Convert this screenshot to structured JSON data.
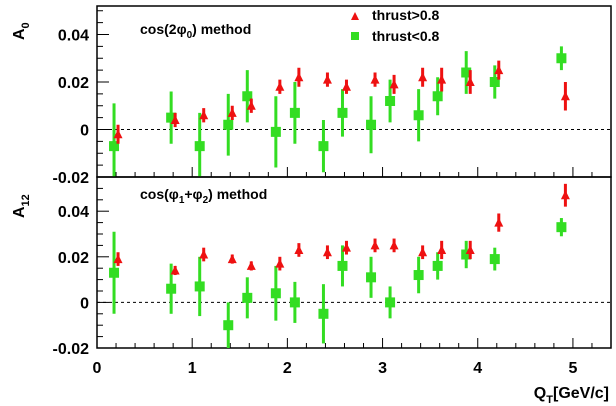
{
  "chart_data": [
    {
      "type": "scatter",
      "title": "cos(2φ0) method",
      "title_parts": {
        "main": "cos(2φ",
        "sub": "0",
        "tail": ") method"
      },
      "ylabel": "A0",
      "ylabel_parts": {
        "main": "A",
        "sub": "0"
      },
      "xlabel": "",
      "xlim": [
        0,
        5.4
      ],
      "ylim": [
        -0.02,
        0.052
      ],
      "yticks": [
        -0.02,
        0,
        0.02,
        0.04
      ],
      "ytick_labels": [
        "-0.02",
        "0",
        "0.02",
        "0.04"
      ],
      "reference_line": 0,
      "legend_position": "top-right",
      "series": [
        {
          "name": "thrust>0.8",
          "marker": "triangle",
          "color": "#ee1111",
          "x": [
            0.2,
            0.8,
            1.1,
            1.4,
            1.6,
            1.9,
            2.1,
            2.4,
            2.6,
            2.9,
            3.1,
            3.4,
            3.6,
            3.9,
            4.2,
            4.9
          ],
          "y": [
            -0.002,
            0.004,
            0.006,
            0.007,
            0.01,
            0.018,
            0.022,
            0.021,
            0.018,
            0.021,
            0.019,
            0.022,
            0.021,
            0.02,
            0.025,
            0.014
          ],
          "err": [
            0.004,
            0.003,
            0.003,
            0.003,
            0.003,
            0.003,
            0.004,
            0.003,
            0.003,
            0.003,
            0.004,
            0.004,
            0.005,
            0.005,
            0.004,
            0.006
          ]
        },
        {
          "name": "thrust<0.8",
          "marker": "square",
          "color": "#33dd22",
          "x": [
            0.2,
            0.8,
            1.1,
            1.4,
            1.6,
            1.9,
            2.1,
            2.4,
            2.6,
            2.9,
            3.1,
            3.4,
            3.6,
            3.9,
            4.2,
            4.9
          ],
          "y": [
            -0.007,
            0.005,
            -0.007,
            0.002,
            0.014,
            -0.001,
            0.007,
            -0.007,
            0.007,
            0.002,
            0.012,
            0.006,
            0.014,
            0.024,
            0.02,
            0.03
          ],
          "err": [
            0.018,
            0.011,
            0.014,
            0.013,
            0.011,
            0.015,
            0.013,
            0.011,
            0.01,
            0.012,
            0.009,
            0.011,
            0.008,
            0.009,
            0.007,
            0.005
          ]
        }
      ]
    },
    {
      "type": "scatter",
      "title": "cos(φ1+φ2) method",
      "title_parts": {
        "main": "cos(φ",
        "sub": "1",
        "mid": "+φ",
        "sub2": "2",
        "tail": ") method"
      },
      "ylabel": "A12",
      "ylabel_parts": {
        "main": "A",
        "sub": "12"
      },
      "xlabel": "QT[GeV/c]",
      "xlabel_parts": {
        "main": "Q",
        "sub": "T",
        "tail": "[GeV/c]"
      },
      "xlim": [
        0,
        5.4
      ],
      "xticks": [
        0,
        1,
        2,
        3,
        4,
        5
      ],
      "xtick_labels": [
        "0",
        "1",
        "2",
        "3",
        "4",
        "5"
      ],
      "ylim": [
        -0.02,
        0.055
      ],
      "yticks": [
        -0.02,
        0,
        0.02,
        0.04
      ],
      "ytick_labels": [
        "-0.02",
        "0",
        "0.02",
        "0.04"
      ],
      "reference_line": 0,
      "series": [
        {
          "name": "thrust>0.8",
          "marker": "triangle",
          "color": "#ee1111",
          "x": [
            0.2,
            0.8,
            1.1,
            1.4,
            1.6,
            1.9,
            2.1,
            2.4,
            2.6,
            2.9,
            3.1,
            3.4,
            3.6,
            3.9,
            4.2,
            4.9
          ],
          "y": [
            0.019,
            0.014,
            0.021,
            0.019,
            0.016,
            0.017,
            0.023,
            0.022,
            0.024,
            0.025,
            0.025,
            0.022,
            0.023,
            0.023,
            0.035,
            0.047
          ],
          "err": [
            0.003,
            0.002,
            0.003,
            0.002,
            0.002,
            0.003,
            0.003,
            0.003,
            0.003,
            0.003,
            0.003,
            0.003,
            0.004,
            0.004,
            0.004,
            0.005
          ]
        },
        {
          "name": "thrust<0.8",
          "marker": "square",
          "color": "#33dd22",
          "x": [
            0.2,
            0.8,
            1.1,
            1.4,
            1.6,
            1.9,
            2.1,
            2.4,
            2.6,
            2.9,
            3.1,
            3.4,
            3.6,
            3.9,
            4.2,
            4.9
          ],
          "y": [
            0.013,
            0.006,
            0.007,
            -0.01,
            0.002,
            0.004,
            0.0,
            -0.005,
            0.016,
            0.011,
            0.0,
            0.012,
            0.016,
            0.021,
            0.019,
            0.033
          ],
          "err": [
            0.018,
            0.011,
            0.013,
            0.01,
            0.009,
            0.012,
            0.009,
            0.013,
            0.009,
            0.009,
            0.007,
            0.008,
            0.006,
            0.006,
            0.005,
            0.004
          ]
        }
      ]
    }
  ]
}
